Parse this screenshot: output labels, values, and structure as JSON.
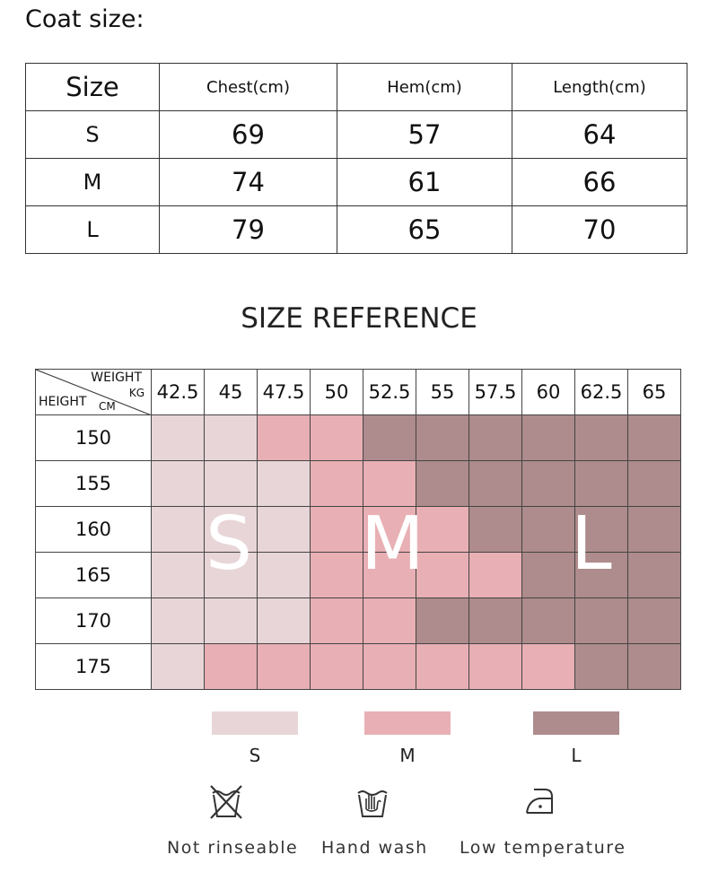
{
  "title": "Coat size:",
  "coat_table": {
    "headers": [
      "Size",
      "Chest(cm)",
      "Hem(cm)",
      "Length(cm)"
    ],
    "rows": [
      {
        "size": "S",
        "chest": "69",
        "hem": "57",
        "length": "64"
      },
      {
        "size": "M",
        "chest": "74",
        "hem": "61",
        "length": "66"
      },
      {
        "size": "L",
        "chest": "79",
        "hem": "65",
        "length": "70"
      }
    ]
  },
  "reference": {
    "title": "SIZE REFERENCE",
    "corner": {
      "weight": "WEIGHT",
      "kg": "KG",
      "height": "HEIGHT",
      "cm": "CM"
    },
    "weights": [
      "42.5",
      "45",
      "47.5",
      "50",
      "52.5",
      "55",
      "57.5",
      "60",
      "62.5",
      "65"
    ],
    "heights": [
      "150",
      "155",
      "160",
      "165",
      "170",
      "175"
    ],
    "grid": [
      [
        "S",
        "S",
        "M",
        "M",
        "L",
        "L",
        "L",
        "L",
        "L",
        "L"
      ],
      [
        "S",
        "S",
        "S",
        "M",
        "M",
        "L",
        "L",
        "L",
        "L",
        "L"
      ],
      [
        "S",
        "S",
        "S",
        "M",
        "M",
        "M",
        "L",
        "L",
        "L",
        "L"
      ],
      [
        "S",
        "S",
        "S",
        "M",
        "M",
        "M",
        "M",
        "L",
        "L",
        "L"
      ],
      [
        "S",
        "S",
        "S",
        "M",
        "M",
        "L",
        "L",
        "L",
        "L",
        "L"
      ],
      [
        "S",
        "M",
        "M",
        "M",
        "M",
        "M",
        "M",
        "M",
        "L",
        "L"
      ]
    ],
    "zone_letters": {
      "S": "S",
      "M": "M",
      "L": "L"
    }
  },
  "colors": {
    "S": "#e8d5d8",
    "M": "#e8b0b4",
    "L": "#ae8b8c"
  },
  "legend": [
    {
      "key": "S",
      "label": "S"
    },
    {
      "key": "M",
      "label": "M"
    },
    {
      "key": "L",
      "label": "L"
    }
  ],
  "care": [
    {
      "icon": "no-wash-icon",
      "label": "Not rinseable"
    },
    {
      "icon": "hand-wash-icon",
      "label": "Hand wash"
    },
    {
      "icon": "low-temperature-iron-icon",
      "label": "Low temperature"
    }
  ]
}
